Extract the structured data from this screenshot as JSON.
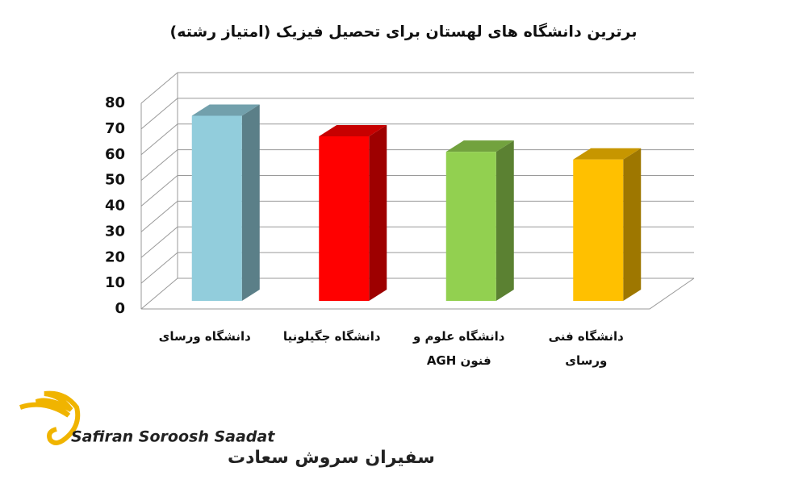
{
  "chart_data": {
    "type": "bar3d",
    "title": "برترین دانشگاه های لهستان برای تحصیل فیزیک (امتیاز رشته)",
    "categories": [
      "دانشگاه ورسای",
      "دانشگاه جگیلونیا",
      "دانشگاه علوم و فنون AGH",
      "دانشگاه فنی ورسای"
    ],
    "values": [
      72,
      64,
      58,
      55
    ],
    "colors": [
      "#92cddc",
      "#ff0000",
      "#92d050",
      "#ffc000"
    ],
    "ylim": [
      0,
      80
    ],
    "yticks": [
      0,
      10,
      20,
      30,
      40,
      50,
      60,
      70,
      80
    ],
    "grid": true
  },
  "brand": {
    "latin": "Safiran Soroosh Saadat",
    "persian": "سفیران سروش سعادت"
  }
}
